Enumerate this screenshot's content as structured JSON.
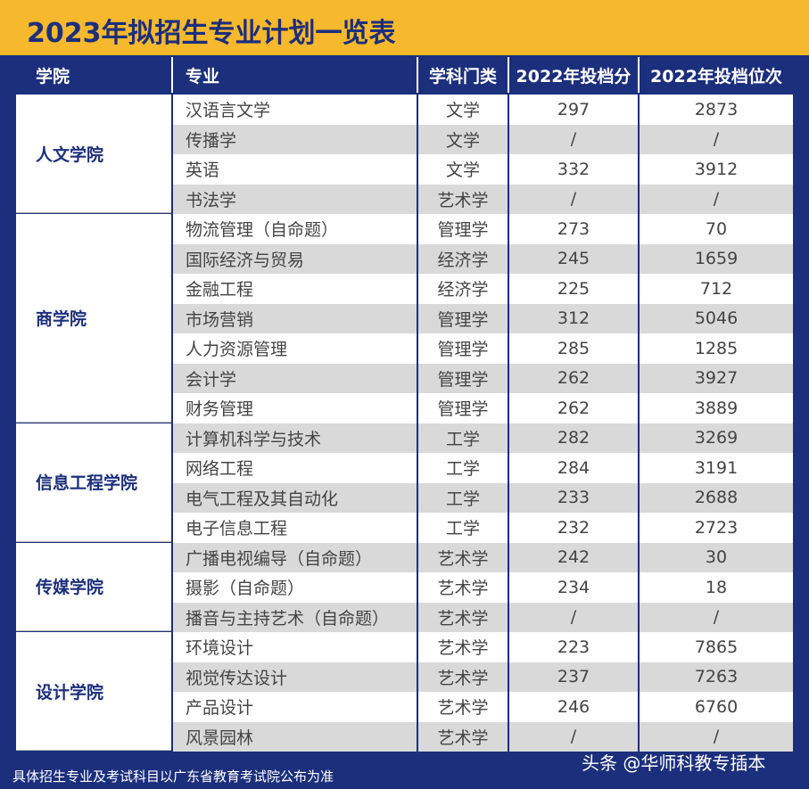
{
  "header": {
    "title": "2023年拟招生专业计划一览表"
  },
  "table": {
    "columns": [
      "学院",
      "专业",
      "学科门类",
      "2022年投档分",
      "2022年投档位次"
    ],
    "groups": [
      {
        "college": "人文学院",
        "rows": [
          [
            "汉语言文学",
            "文学",
            297,
            2873
          ],
          [
            "传播学",
            "文学",
            "/",
            "/"
          ],
          [
            "英语",
            "文学",
            332,
            3912
          ],
          [
            "书法学",
            "艺术学",
            "/",
            "/"
          ]
        ]
      },
      {
        "college": "商学院",
        "rows": [
          [
            "物流管理（自命题）",
            "管理学",
            273,
            70
          ],
          [
            "国际经济与贸易",
            "经济学",
            245,
            1659
          ],
          [
            "金融工程",
            "经济学",
            225,
            712
          ],
          [
            "市场营销",
            "管理学",
            312,
            5046
          ],
          [
            "人力资源管理",
            "管理学",
            285,
            1285
          ],
          [
            "会计学",
            "管理学",
            262,
            3927
          ],
          [
            "财务管理",
            "管理学",
            262,
            3889
          ]
        ]
      },
      {
        "college": "信息工程学院",
        "rows": [
          [
            "计算机科学与技术",
            "工学",
            282,
            3269
          ],
          [
            "网络工程",
            "工学",
            284,
            3191
          ],
          [
            "电气工程及其自动化",
            "工学",
            233,
            2688
          ],
          [
            "电子信息工程",
            "工学",
            232,
            2723
          ]
        ]
      },
      {
        "college": "传媒学院",
        "rows": [
          [
            "广播电视编导（自命题）",
            "艺术学",
            242,
            30
          ],
          [
            "摄影（自命题）",
            "艺术学",
            234,
            18
          ],
          [
            "播音与主持艺术（自命题）",
            "艺术学",
            "/",
            "/"
          ]
        ]
      },
      {
        "college": "设计学院",
        "rows": [
          [
            "环境设计",
            "艺术学",
            223,
            7865
          ],
          [
            "视觉传达设计",
            "艺术学",
            237,
            7263
          ],
          [
            "产品设计",
            "艺术学",
            246,
            6760
          ],
          [
            "风景园林",
            "艺术学",
            "/",
            "/"
          ]
        ]
      }
    ]
  },
  "footer": {
    "note": "具体招生专业及考试科目以广东省教育考试院公布为准",
    "watermark": "头条 @华师科教专插本"
  }
}
